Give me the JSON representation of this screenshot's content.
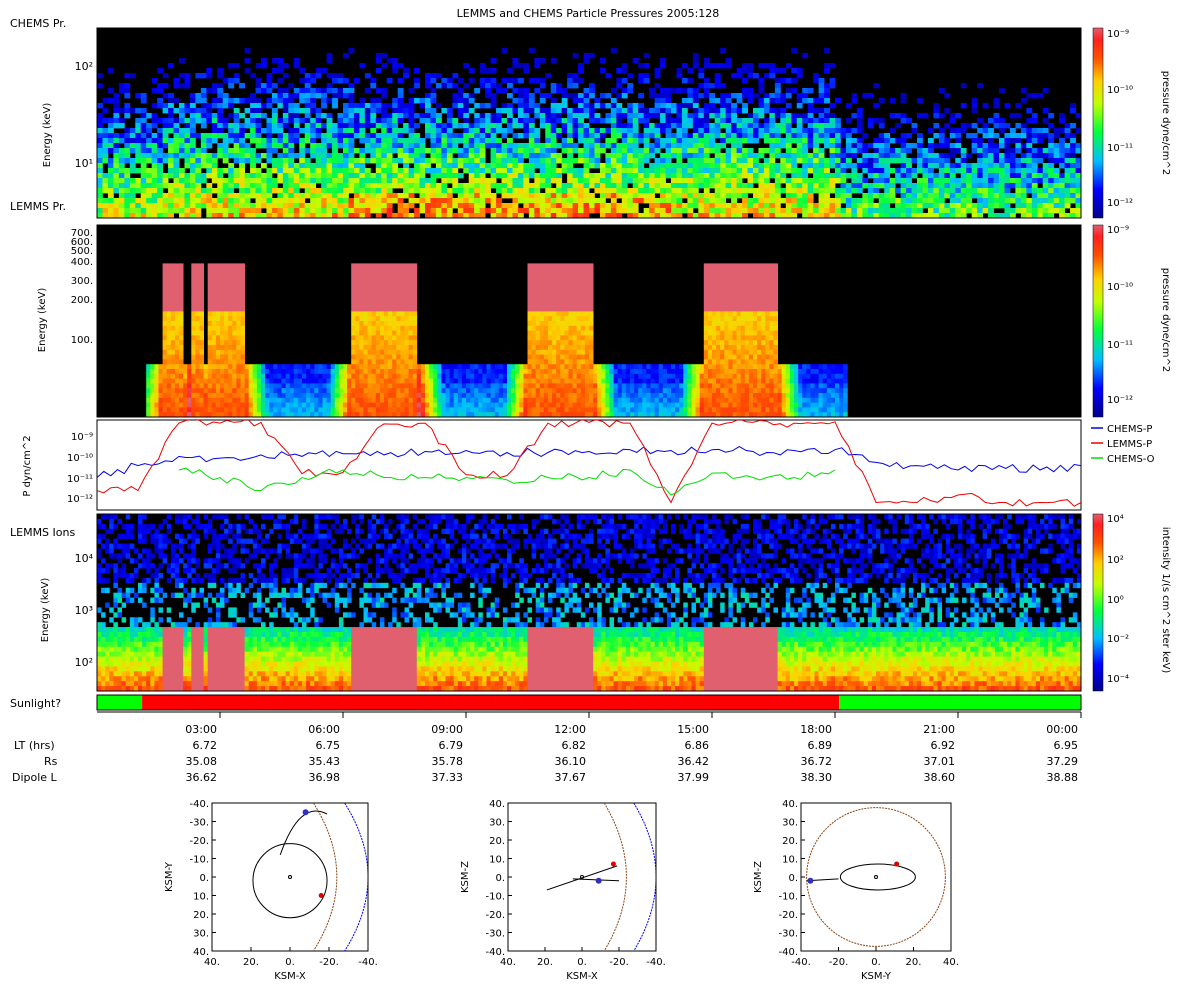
{
  "title": "LEMMS and CHEMS Particle Pressures  2005:128",
  "spectrogram_panels": [
    {
      "row_label": "CHEMS Pr.",
      "ylabel": "Energy (keV)",
      "yticks": [
        "10²",
        "10¹"
      ],
      "bottom_label": "LEMMS Pr.",
      "colorbar_label": "pressure dyne/cm^2",
      "colorbar_ticks": [
        "10⁻⁹",
        "10⁻¹⁰",
        "10⁻¹¹",
        "10⁻¹²"
      ]
    },
    {
      "row_label": "",
      "ylabel": "Energy (keV)",
      "yticks": [
        "700.",
        "600.",
        "500.",
        "400.",
        "300.",
        "200.",
        "100."
      ],
      "colorbar_label": "pressure dyne/cm^2",
      "colorbar_ticks": [
        "10⁻⁹",
        "10⁻¹⁰",
        "10⁻¹¹",
        "10⁻¹²"
      ]
    },
    {
      "row_label": "LEMMS Ions",
      "ylabel": "Energy (keV)",
      "yticks": [
        "10⁴",
        "10³",
        "10²"
      ],
      "colorbar_label": "intensity 1/(s cm^2 ster keV)",
      "colorbar_ticks": [
        "10⁴",
        "10²",
        "10⁰",
        "10⁻²",
        "10⁻⁴"
      ]
    }
  ],
  "line_panel": {
    "ylabel": "P dyn/cm^2",
    "yticks": [
      "10⁻⁹",
      "10⁻¹⁰",
      "10⁻¹¹",
      "10⁻¹²"
    ],
    "legend": [
      {
        "name": "CHEMS-P",
        "color": "#0000ee"
      },
      {
        "name": "LEMMS-P",
        "color": "#ee0000"
      },
      {
        "name": "CHEMS-O",
        "color": "#00dd00"
      }
    ]
  },
  "sunlight": {
    "label": "Sunlight?",
    "segments": [
      {
        "start_hr": 0.0,
        "end_hr": 1.1,
        "color": "#00ff00"
      },
      {
        "start_hr": 1.1,
        "end_hr": 18.1,
        "color": "#ff0000"
      },
      {
        "start_hr": 18.1,
        "end_hr": 24.0,
        "color": "#00ff00"
      }
    ]
  },
  "time_axis": {
    "ticks": [
      "03:00",
      "06:00",
      "09:00",
      "12:00",
      "15:00",
      "18:00",
      "21:00",
      "00:00"
    ],
    "rows": [
      {
        "label": "LT (hrs)",
        "values": [
          "6.72",
          "6.75",
          "6.79",
          "6.82",
          "6.86",
          "6.89",
          "6.92",
          "6.95"
        ]
      },
      {
        "label": "Rs",
        "values": [
          "35.08",
          "35.43",
          "35.78",
          "36.10",
          "36.42",
          "36.72",
          "37.01",
          "37.29"
        ]
      },
      {
        "label": "Dipole L",
        "values": [
          "36.62",
          "36.98",
          "37.33",
          "37.67",
          "37.99",
          "38.30",
          "38.60",
          "38.88"
        ]
      }
    ]
  },
  "chart_data": [
    {
      "type": "heatmap",
      "name": "CHEMS Pr. spectrogram",
      "x_range_hr": [
        0,
        24
      ],
      "ylabel": "Energy (keV)",
      "ylim_log": [
        3,
        300
      ],
      "colorbar": {
        "label": "pressure dyne/cm^2",
        "range": [
          1e-12,
          1e-09
        ],
        "scale": "log"
      }
    },
    {
      "type": "heatmap",
      "name": "LEMMS Pr. spectrogram",
      "x_range_hr": [
        0,
        24
      ],
      "ylabel": "Energy (keV)",
      "saturated_intervals_hr": [
        [
          1.6,
          2.0
        ],
        [
          2.2,
          2.5
        ],
        [
          2.7,
          3.5
        ],
        [
          6.2,
          7.8
        ],
        [
          10.5,
          12.0
        ],
        [
          14.8,
          16.5
        ]
      ],
      "colorbar": {
        "label": "pressure dyne/cm^2",
        "range": [
          1e-12,
          1e-09
        ],
        "scale": "log"
      }
    },
    {
      "type": "line",
      "x_hr": [
        0,
        1,
        2,
        3,
        4,
        5,
        6,
        7,
        8,
        9,
        10,
        11,
        12,
        13,
        14,
        15,
        16,
        17,
        18,
        19,
        20,
        21,
        22,
        23,
        24
      ],
      "ylabel": "P dyn/cm^2",
      "ylog": true,
      "ylim": [
        5e-13,
        2e-09
      ],
      "series": [
        {
          "name": "CHEMS-P",
          "color": "#0000ee",
          "values": [
            1e-11,
            3e-11,
            7e-11,
            6e-11,
            8e-11,
            7e-11,
            9e-11,
            8e-11,
            1.1e-10,
            1.2e-10,
            1e-10,
            1e-10,
            1.1e-10,
            1.3e-10,
            1.2e-10,
            1.3e-10,
            1.1e-10,
            1.2e-10,
            1.3e-10,
            4e-11,
            3e-11,
            2e-11,
            3e-11,
            2e-11,
            3e-11
          ]
        },
        {
          "name": "LEMMS-P",
          "color": "#ee0000",
          "values": [
            3e-12,
            3e-12,
            1.5e-09,
            1.5e-09,
            1.6e-09,
            1.4e-11,
            1.6e-11,
            1.4e-09,
            1.5e-09,
            1.3e-11,
            1.2e-11,
            1.5e-09,
            1.6e-09,
            1.5e-09,
            1e-12,
            1.5e-09,
            1.6e-09,
            1.5e-09,
            1.7e-09,
            1e-12,
            1e-12,
            2e-12,
            1e-12,
            1e-12,
            1e-12
          ]
        },
        {
          "name": "CHEMS-O",
          "color": "#00dd00",
          "values": [
            null,
            null,
            2e-11,
            1e-11,
            3e-12,
            1e-11,
            2e-11,
            1e-11,
            1e-11,
            1e-11,
            8e-12,
            1e-11,
            1e-11,
            2e-11,
            2e-12,
            1.5e-11,
            1e-11,
            1e-11,
            2e-11,
            null,
            null,
            null,
            null,
            null,
            null
          ]
        }
      ]
    },
    {
      "type": "heatmap",
      "name": "LEMMS Ions spectrogram",
      "x_range_hr": [
        0,
        24
      ],
      "ylabel": "Energy (keV)",
      "ylim_log": [
        30,
        50000
      ],
      "colorbar": {
        "label": "intensity 1/(s cm^2 ster keV)",
        "range": [
          1e-05,
          10000.0
        ],
        "scale": "log"
      }
    },
    {
      "type": "scatter",
      "name": "orbit KSM-X vs KSM-Y",
      "xlabel": "KSM-X",
      "ylabel": "KSM-Y",
      "xticks": [
        "40.",
        "20.",
        "0.",
        "-20.",
        "-40."
      ],
      "yticks": [
        "-40.",
        "-30.",
        "-20.",
        "-10.",
        "0.",
        "10.",
        "20.",
        "30.",
        "40."
      ]
    },
    {
      "type": "scatter",
      "name": "orbit KSM-X vs KSM-Z",
      "xlabel": "KSM-X",
      "ylabel": "KSM-Z",
      "xticks": [
        "40.",
        "20.",
        "0.",
        "-20.",
        "-40."
      ],
      "yticks": [
        "40.",
        "30.",
        "20.",
        "10.",
        "0.",
        "-10.",
        "-20.",
        "-30.",
        "-40."
      ]
    },
    {
      "type": "scatter",
      "name": "orbit KSM-Y vs KSM-Z",
      "xlabel": "KSM-Y",
      "ylabel": "KSM-Z",
      "xticks": [
        "-40.",
        "-20.",
        "0.",
        "20.",
        "40."
      ],
      "yticks": [
        "40.",
        "30.",
        "20.",
        "10.",
        "0.",
        "-10.",
        "-20.",
        "-30.",
        "-40."
      ]
    }
  ]
}
